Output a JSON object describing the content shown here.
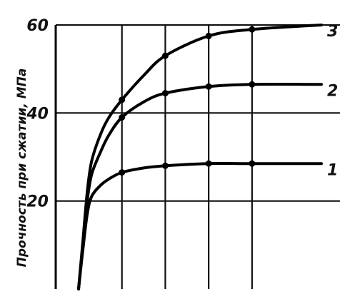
{
  "chart_data": {
    "type": "line",
    "title": "",
    "xlabel": "",
    "ylabel": "Прочность при сжатии, МПа",
    "ylim": [
      0,
      60
    ],
    "xlim": [
      0,
      5.6
    ],
    "yticks": [
      20,
      40,
      60
    ],
    "x_gridlines": [
      1,
      2,
      3,
      4
    ],
    "y_gridlines": [
      20,
      40,
      60
    ],
    "grid": true,
    "series": [
      {
        "name": "1",
        "x": [
          0,
          0.1,
          0.2,
          0.3,
          0.5,
          0.7,
          1.0,
          1.5,
          2.0,
          3.0,
          4.0,
          5.6
        ],
        "values": [
          0,
          9,
          17,
          21,
          23.5,
          25,
          26.5,
          27.5,
          28,
          28.5,
          28.5,
          28.5
        ]
      },
      {
        "name": "2",
        "x": [
          0,
          0.1,
          0.2,
          0.3,
          0.5,
          0.7,
          1.0,
          1.5,
          2.0,
          3.0,
          4.0,
          5.6
        ],
        "values": [
          0,
          10,
          20,
          26,
          31,
          35,
          39,
          42.5,
          44.5,
          46,
          46.5,
          46.5
        ]
      },
      {
        "name": "3",
        "x": [
          0,
          0.1,
          0.2,
          0.3,
          0.5,
          0.7,
          1.0,
          1.5,
          2.0,
          3.0,
          4.0,
          5.6
        ],
        "values": [
          0,
          11,
          22,
          29,
          35,
          39,
          43,
          48.5,
          53,
          57.5,
          59,
          60
        ]
      }
    ],
    "markers_x": [
      1,
      2,
      3,
      4
    ],
    "axis_color": "#000000",
    "line_color": "#000000",
    "background": "#ffffff"
  }
}
